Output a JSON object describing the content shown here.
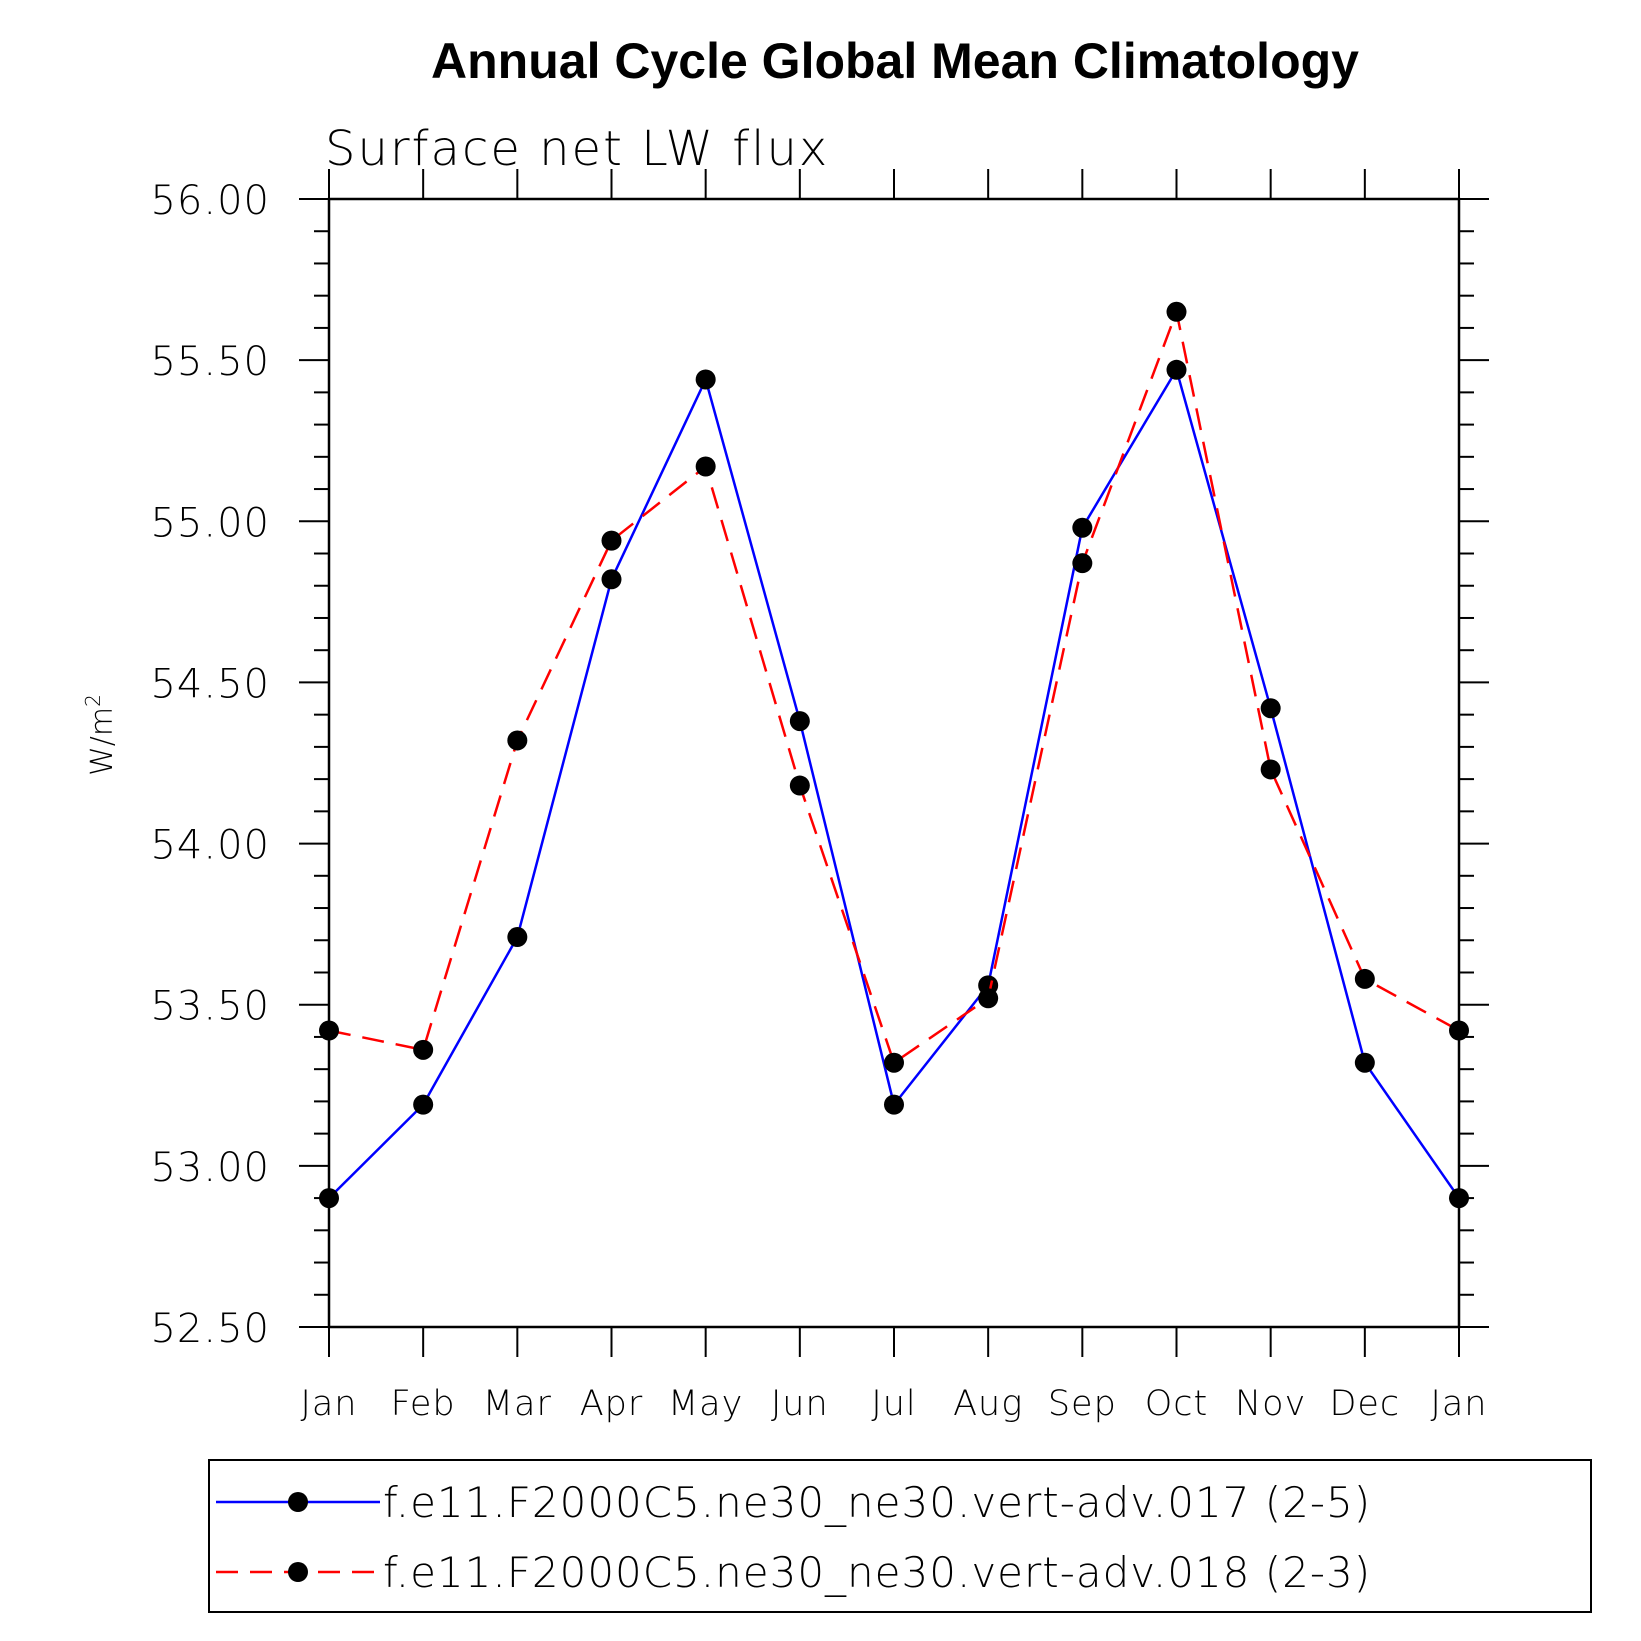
{
  "chart_data": {
    "type": "line",
    "title": "Annual Cycle Global Mean Climatology",
    "subtitle": "Surface net LW flux",
    "ylabel": "W/m",
    "ylabel_sup": "2",
    "xlabel": "",
    "ylim": [
      52.5,
      56.0
    ],
    "yticks": [
      "52.50",
      "53.00",
      "53.50",
      "54.00",
      "54.50",
      "55.00",
      "55.50",
      "56.00"
    ],
    "categories": [
      "Jan",
      "Feb",
      "Mar",
      "Apr",
      "May",
      "Jun",
      "Jul",
      "Aug",
      "Sep",
      "Oct",
      "Nov",
      "Dec",
      "Jan"
    ],
    "grid": false,
    "legend_position": "bottom",
    "series": [
      {
        "name": "f.e11.F2000C5.ne30_ne30.vert-adv.017 (2-5)",
        "color": "#0000ff",
        "dash": "solid",
        "values": [
          52.9,
          53.19,
          53.71,
          54.82,
          55.44,
          54.38,
          53.19,
          53.56,
          54.98,
          55.47,
          54.42,
          53.32,
          52.9
        ]
      },
      {
        "name": "f.e11.F2000C5.ne30_ne30.vert-adv.018 (2-3)",
        "color": "#ff0000",
        "dash": "dashed",
        "values": [
          53.42,
          53.36,
          54.32,
          54.94,
          55.17,
          54.18,
          53.32,
          53.52,
          54.87,
          55.65,
          54.23,
          53.58,
          53.42
        ]
      }
    ]
  }
}
